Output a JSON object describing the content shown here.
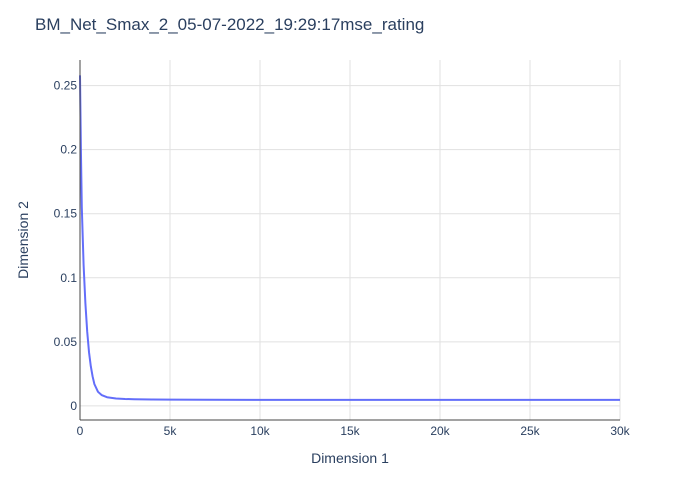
{
  "chart_data": {
    "type": "line",
    "title": "BM_Net_Smax_2_05-07-2022_19:29:17mse_rating",
    "xlabel": "Dimension 1",
    "ylabel": "Dimension 2",
    "xlim": [
      0,
      30000
    ],
    "ylim": [
      -0.011,
      0.27
    ],
    "x_ticks": [
      0,
      5000,
      10000,
      15000,
      20000,
      25000,
      30000
    ],
    "x_tick_labels": [
      "0",
      "5k",
      "10k",
      "15k",
      "20k",
      "25k",
      "30k"
    ],
    "y_ticks": [
      0,
      0.05,
      0.1,
      0.15,
      0.2,
      0.25
    ],
    "y_tick_labels": [
      "0",
      "0.05",
      "0.1",
      "0.15",
      "0.2",
      "0.25"
    ],
    "grid": true,
    "legend": "none",
    "colors": {
      "line": "#636efa",
      "axis": "#444444",
      "text": "#2a3f5f"
    },
    "series": [
      {
        "x": [
          0,
          50,
          100,
          200,
          300,
          400,
          500,
          600,
          700,
          800,
          1000,
          1200,
          1500,
          2000,
          2500,
          3000,
          4000,
          5000,
          7000,
          10000,
          15000,
          20000,
          25000,
          30000
        ],
        "y": [
          0.258,
          0.2,
          0.155,
          0.11,
          0.08,
          0.058,
          0.042,
          0.031,
          0.023,
          0.017,
          0.011,
          0.0085,
          0.0068,
          0.0058,
          0.0054,
          0.0052,
          0.005,
          0.0049,
          0.0048,
          0.0047,
          0.0047,
          0.0047,
          0.0047,
          0.0047
        ]
      }
    ]
  }
}
